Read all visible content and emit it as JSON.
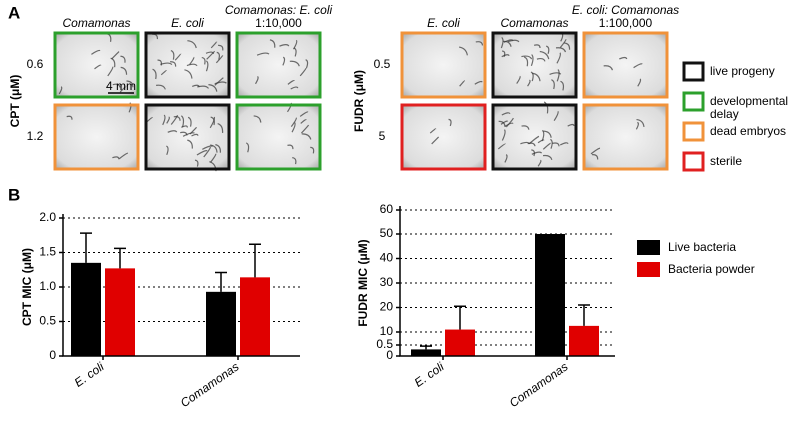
{
  "panel_a": {
    "letter": "A",
    "scale_bar": "4 mm",
    "left": {
      "column_labels": [
        [
          "Comamonas"
        ],
        [
          "E. coli"
        ],
        [
          "Comamonas: E. coli",
          "1:10,000"
        ]
      ],
      "row_axis_label": "CPT (μM)",
      "row_labels": [
        "0.6",
        "1.2"
      ],
      "borders": [
        [
          "#2ca02c",
          "#111111",
          "#2ca02c"
        ],
        [
          "#f0923a",
          "#111111",
          "#2ca02c"
        ]
      ]
    },
    "right": {
      "column_labels": [
        [
          "E. coli"
        ],
        [
          "Comamonas"
        ],
        [
          "E. coli: Comamonas",
          "1:100,000"
        ]
      ],
      "row_axis_label": "FUDR (μM)",
      "row_labels": [
        "0.5",
        "5"
      ],
      "borders": [
        [
          "#f0923a",
          "#111111",
          "#f0923a"
        ],
        [
          "#e02020",
          "#111111",
          "#f0923a"
        ]
      ]
    },
    "legend": [
      {
        "color": "#111111",
        "label": [
          "live progeny"
        ]
      },
      {
        "color": "#2ca02c",
        "label": [
          "developmental",
          "delay"
        ]
      },
      {
        "color": "#f0923a",
        "label": [
          "dead embryos"
        ]
      },
      {
        "color": "#e02020",
        "label": [
          "sterile"
        ]
      }
    ]
  },
  "panel_b": {
    "letter": "B"
  },
  "chart_data": [
    {
      "type": "bar",
      "y_label": "CPT MIC (μM)",
      "y_label_color": "#f0923a",
      "categories": [
        "E. coli",
        "Comamonas"
      ],
      "series": [
        {
          "color": "#000000",
          "values": [
            1.35,
            0.93
          ],
          "errors": [
            0.43,
            0.28
          ]
        },
        {
          "color": "#e00000",
          "values": [
            1.27,
            1.14
          ],
          "errors": [
            0.29,
            0.48
          ]
        }
      ],
      "ylim": [
        0,
        2
      ],
      "yticks": [
        0,
        0.5,
        {
          "value": 1,
          "label": "1.0"
        },
        {
          "value": 1.5,
          "label": "1.5"
        },
        {
          "value": 2,
          "label": "2.0"
        }
      ],
      "grid": true
    },
    {
      "type": "bar",
      "y_label": "FUDR MIC (μM)",
      "y_label_color": "#b020d0",
      "categories": [
        "E. coli",
        "Comamonas"
      ],
      "series": [
        {
          "name": "Live bacteria",
          "color": "#000000",
          "values": [
            0.3,
            50
          ],
          "errors": [
            0.15,
            0
          ]
        },
        {
          "name": "Bacteria powder",
          "color": "#e00000",
          "values": [
            11,
            12.5
          ],
          "errors": [
            9.5,
            8.5
          ]
        }
      ],
      "ylim": [
        0,
        60
      ],
      "yticks": [
        0,
        0.5,
        10,
        20,
        30,
        40,
        50,
        60
      ],
      "grid": true
    }
  ]
}
